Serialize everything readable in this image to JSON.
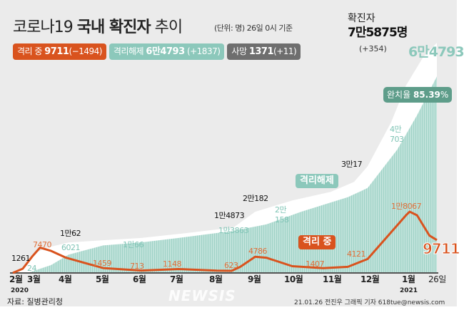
{
  "header": {
    "title_light": "코로나19 ",
    "title_bold": "국내 확진자",
    "title_tail": " 추이",
    "unit": "(단위: 명) 26일 0시 기준"
  },
  "pills": [
    {
      "label": "격리 중",
      "value": "9711",
      "change": "(−1494)",
      "color": "#d9531e"
    },
    {
      "label": "격리해제",
      "value": "6만4793",
      "change": "(+1837)",
      "color": "#8cc8bb"
    },
    {
      "label": "사망",
      "value": "1371",
      "change": "(+11)",
      "color": "#6e6e6e"
    }
  ],
  "confirmed": {
    "label": "확진자",
    "value": "7만5875명",
    "change": "(+354)"
  },
  "released_total": "6만4793",
  "recovery_rate": {
    "label": "완치율",
    "value": "85.39",
    "suffix": "%"
  },
  "tags": {
    "released": "격리해제",
    "isolating": "격리 중"
  },
  "isolating_now": "9711",
  "annotations": {
    "black": [
      "1261",
      "1만62",
      "1만4873",
      "2만182",
      "3만17"
    ],
    "teal": [
      "24",
      "6021",
      "1만66",
      "1만3863",
      "2만",
      "158",
      "4만",
      "703"
    ],
    "orange": [
      "7470",
      "1459",
      "713",
      "1148",
      "623",
      "4786",
      "1407",
      "4121",
      "1만8067"
    ]
  },
  "x_ticks": [
    "2월",
    "3월",
    "4월",
    "5월",
    "6월",
    "7월",
    "8월",
    "9월",
    "10월",
    "11월",
    "12월",
    "1월",
    "26일"
  ],
  "years": [
    "2020",
    "2021"
  ],
  "footer": {
    "source": "자료: 질병관리청",
    "credit": "21.01.26 전진우 그래픽 기자 618tue@newsis.com",
    "logo": "NEWSIS"
  },
  "chart_data": {
    "type": "area",
    "x_range": [
      "2020-02-18",
      "2021-01-26"
    ],
    "series": [
      {
        "name": "확진자",
        "color": "#ffffff",
        "points": [
          [
            "2020-02-18",
            31
          ],
          [
            "2020-02-26",
            1261
          ],
          [
            "2020-03-05",
            6000
          ],
          [
            "2020-03-15",
            8200
          ],
          [
            "2020-04-03",
            10062
          ],
          [
            "2020-05-01",
            10780
          ],
          [
            "2020-06-01",
            11540
          ],
          [
            "2020-07-01",
            12850
          ],
          [
            "2020-08-01",
            14340
          ],
          [
            "2020-08-14",
            14873
          ],
          [
            "2020-09-01",
            20182
          ],
          [
            "2020-10-01",
            23889
          ],
          [
            "2020-11-01",
            26732
          ],
          [
            "2020-11-20",
            30017
          ],
          [
            "2020-12-01",
            35163
          ],
          [
            "2020-12-20",
            49665
          ],
          [
            "2021-01-01",
            61769
          ],
          [
            "2021-01-15",
            71241
          ],
          [
            "2021-01-26",
            75875
          ]
        ]
      },
      {
        "name": "격리해제",
        "color": "#8cc8bb",
        "points": [
          [
            "2020-02-18",
            12
          ],
          [
            "2020-03-01",
            24
          ],
          [
            "2020-03-20",
            2600
          ],
          [
            "2020-04-03",
            6021
          ],
          [
            "2020-05-01",
            9072
          ],
          [
            "2020-06-01",
            10066
          ],
          [
            "2020-07-01",
            11537
          ],
          [
            "2020-08-14",
            13863
          ],
          [
            "2020-09-10",
            16000
          ],
          [
            "2020-10-08",
            20158
          ],
          [
            "2020-11-15",
            25000
          ],
          [
            "2020-12-01",
            28000
          ],
          [
            "2020-12-25",
            40703
          ],
          [
            "2021-01-10",
            52000
          ],
          [
            "2021-01-26",
            64793
          ]
        ]
      },
      {
        "name": "격리 중",
        "color": "#d9531e",
        "points": [
          [
            "2020-02-18",
            12
          ],
          [
            "2020-02-26",
            1261
          ],
          [
            "2020-03-05",
            5000
          ],
          [
            "2020-03-11",
            7470
          ],
          [
            "2020-03-20",
            6500
          ],
          [
            "2020-04-01",
            4500
          ],
          [
            "2020-05-01",
            1459
          ],
          [
            "2020-06-01",
            713
          ],
          [
            "2020-07-01",
            1148
          ],
          [
            "2020-08-01",
            700
          ],
          [
            "2020-08-13",
            623
          ],
          [
            "2020-08-20",
            1800
          ],
          [
            "2020-09-01",
            4786
          ],
          [
            "2020-09-10",
            4500
          ],
          [
            "2020-10-01",
            2000
          ],
          [
            "2020-10-26",
            1407
          ],
          [
            "2020-11-15",
            1800
          ],
          [
            "2020-12-01",
            4121
          ],
          [
            "2020-12-20",
            12000
          ],
          [
            "2021-01-01",
            17000
          ],
          [
            "2021-01-04",
            18067
          ],
          [
            "2021-01-10",
            17000
          ],
          [
            "2021-01-20",
            11000
          ],
          [
            "2021-01-26",
            9711
          ]
        ]
      }
    ]
  }
}
